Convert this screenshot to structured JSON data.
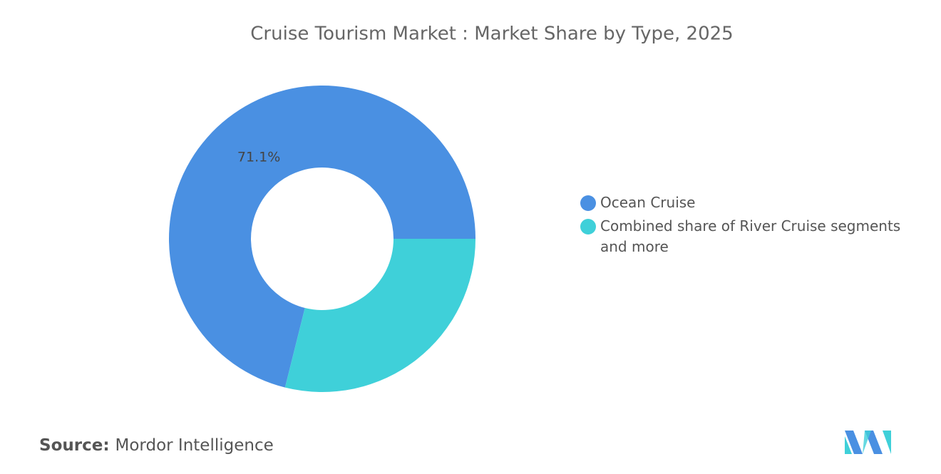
{
  "chart_data": {
    "type": "donut",
    "title": "Cruise Tourism Market : Market Share by Type, 2025",
    "categories": [
      "Ocean Cruise",
      "Combined share of River Cruise segments and more"
    ],
    "values": [
      71.1,
      28.9
    ],
    "value_labels": [
      "71.1%",
      null
    ],
    "colors": [
      "#4a90e2",
      "#3fd0d9"
    ],
    "legend": "right"
  },
  "source": {
    "label": "Source:",
    "text": "Mordor Intelligence"
  }
}
